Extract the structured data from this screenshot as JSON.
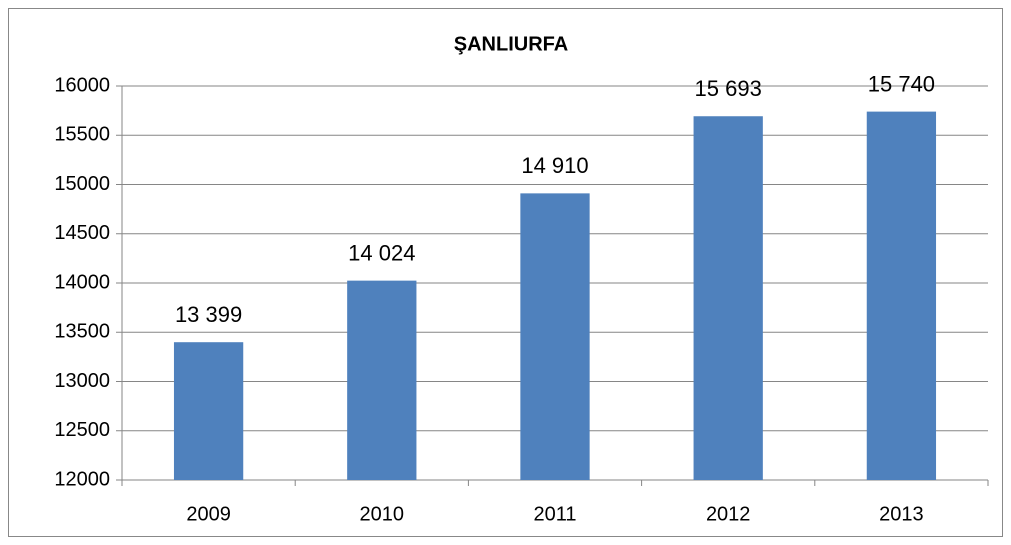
{
  "chart_data": {
    "type": "bar",
    "title": "ŞANLIURFA",
    "categories": [
      "2009",
      "2010",
      "2011",
      "2012",
      "2013"
    ],
    "values": [
      13399,
      14024,
      14910,
      15693,
      15740
    ],
    "value_labels": [
      "13 399",
      "14 024",
      "14 910",
      "15 693",
      "15 740"
    ],
    "color": "#4f81bd",
    "ylim": [
      12000,
      16000
    ],
    "yticks": [
      12000,
      12500,
      13000,
      13500,
      14000,
      14500,
      15000,
      15500,
      16000
    ],
    "grid": true
  }
}
